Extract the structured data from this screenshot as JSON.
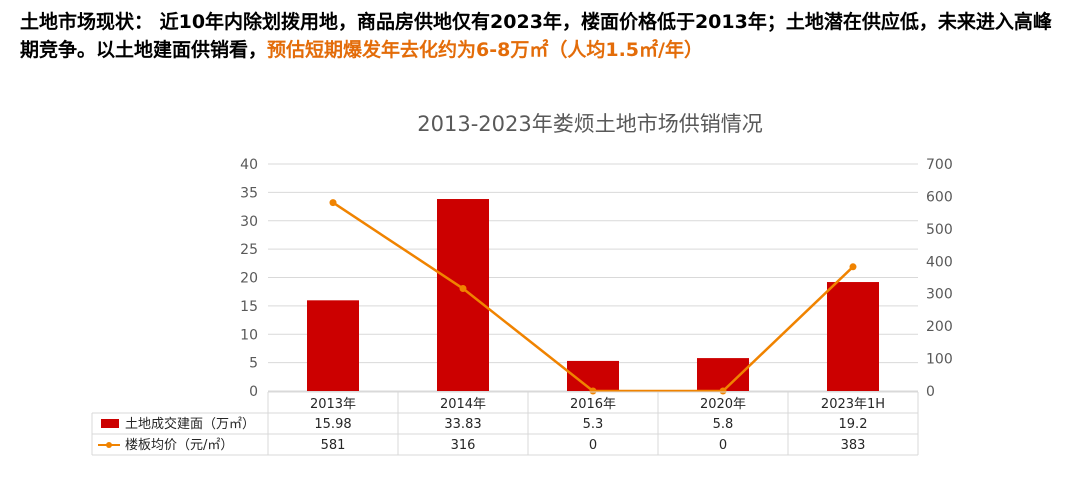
{
  "headline": {
    "intro": "土地市场现状： 近10年内除划拨用地，商品房供地仅有2023年，楼面价格低于2013年；土地潜在供应低，未来进入高峰期竞争。以土地建面供销看，",
    "highlight": "预估短期爆发年去化约为6-8万㎡（人均1.5㎡/年）"
  },
  "colors": {
    "bar": "#cc0000",
    "line": "#f08300",
    "grid": "#d9d9d9",
    "text": "#595959",
    "highlight": "#e36c09"
  },
  "chart_data": {
    "type": "bar",
    "title": "2013-2023年娄烦土地市场供销情况",
    "categories": [
      "2013年",
      "2014年",
      "2016年",
      "2020年",
      "2023年1H"
    ],
    "series": [
      {
        "name": "土地成交建面（万㎡）",
        "type": "bar",
        "axis": "left",
        "values": [
          15.98,
          33.83,
          5.3,
          5.8,
          19.2
        ],
        "labels": [
          "15.98",
          "33.83",
          "5.3",
          "5.8",
          "19.2"
        ]
      },
      {
        "name": "楼板均价（元/㎡）",
        "type": "line",
        "axis": "right",
        "values": [
          581,
          316,
          0,
          0,
          383
        ],
        "labels": [
          "581",
          "316",
          "0",
          "0",
          "383"
        ]
      }
    ],
    "y_left": {
      "min": 0,
      "max": 40,
      "step": 5
    },
    "y_right": {
      "min": 0,
      "max": 700,
      "step": 100
    },
    "grid": true,
    "legend": "data-table"
  }
}
